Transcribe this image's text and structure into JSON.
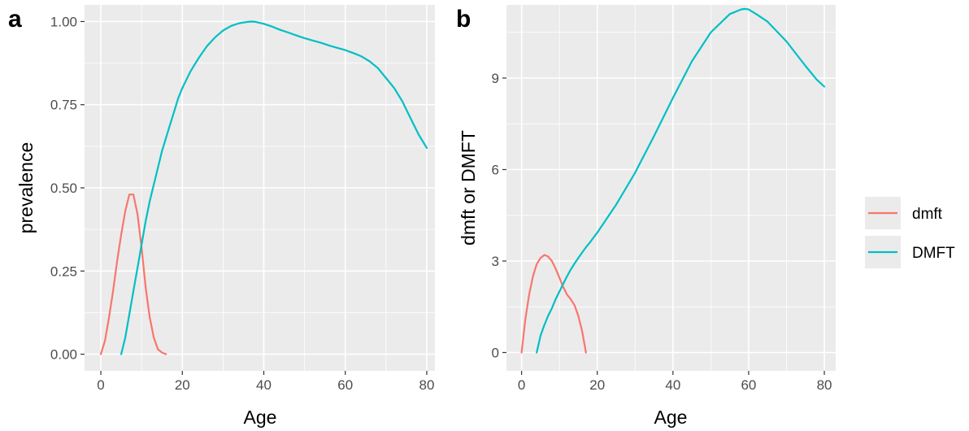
{
  "colors": {
    "dmft": "#F8766D",
    "DMFT": "#00BFC4",
    "panel": "#EBEBEB"
  },
  "legend": {
    "position": "right",
    "items": [
      {
        "key": "dmft",
        "label": "dmft"
      },
      {
        "key": "DMFT",
        "label": "DMFT"
      }
    ]
  },
  "chart_data": [
    {
      "type": "line",
      "panel": "a",
      "xlabel": "Age",
      "ylabel": "prevalence",
      "xlim": [
        -4,
        82
      ],
      "ylim": [
        -0.05,
        1.05
      ],
      "xticks": [
        0,
        20,
        40,
        60,
        80
      ],
      "xtick_labels": [
        "0",
        "20",
        "40",
        "60",
        "80"
      ],
      "yticks": [
        0,
        0.25,
        0.5,
        0.75,
        1.0
      ],
      "ytick_labels": [
        "0.00",
        "0.25",
        "0.50",
        "0.75",
        "1.00"
      ],
      "grid": true,
      "series": [
        {
          "name": "dmft",
          "x": [
            0,
            1,
            2,
            3,
            4,
            5,
            6,
            7,
            8,
            9,
            10,
            11,
            12,
            13,
            14,
            15,
            16
          ],
          "y": [
            0.0,
            0.04,
            0.11,
            0.19,
            0.28,
            0.36,
            0.43,
            0.48,
            0.48,
            0.42,
            0.32,
            0.2,
            0.11,
            0.05,
            0.015,
            0.005,
            0.0
          ]
        },
        {
          "name": "DMFT",
          "x": [
            5,
            6,
            7,
            8,
            9,
            10,
            11,
            12,
            13,
            14,
            15,
            16,
            17,
            18,
            19,
            20,
            22,
            24,
            26,
            28,
            30,
            32,
            34,
            36,
            37,
            38,
            40,
            42,
            44,
            46,
            48,
            50,
            52,
            54,
            56,
            58,
            60,
            62,
            64,
            66,
            68,
            70,
            72,
            74,
            76,
            78,
            80
          ],
          "y": [
            0.0,
            0.05,
            0.12,
            0.19,
            0.26,
            0.33,
            0.4,
            0.46,
            0.51,
            0.56,
            0.61,
            0.65,
            0.69,
            0.73,
            0.77,
            0.8,
            0.85,
            0.89,
            0.925,
            0.952,
            0.973,
            0.987,
            0.995,
            0.999,
            1.0,
            0.999,
            0.993,
            0.985,
            0.975,
            0.967,
            0.958,
            0.95,
            0.943,
            0.936,
            0.928,
            0.921,
            0.914,
            0.905,
            0.895,
            0.88,
            0.86,
            0.83,
            0.8,
            0.76,
            0.71,
            0.66,
            0.62
          ]
        }
      ]
    },
    {
      "type": "line",
      "panel": "b",
      "xlabel": "Age",
      "ylabel": "dmft or DMFT",
      "xlim": [
        -4,
        83
      ],
      "ylim": [
        -0.6,
        11.4
      ],
      "xticks": [
        0,
        20,
        40,
        60,
        80
      ],
      "xtick_labels": [
        "0",
        "20",
        "40",
        "60",
        "80"
      ],
      "yticks": [
        0,
        3,
        6,
        9
      ],
      "ytick_labels": [
        "0",
        "3",
        "6",
        "9"
      ],
      "grid": true,
      "series": [
        {
          "name": "dmft",
          "x": [
            0,
            1,
            2,
            3,
            4,
            5,
            6,
            7,
            8,
            9,
            10,
            11,
            12,
            13,
            14,
            15,
            16,
            17
          ],
          "y": [
            0.0,
            1.1,
            1.9,
            2.5,
            2.9,
            3.1,
            3.2,
            3.15,
            3.0,
            2.75,
            2.45,
            2.15,
            1.9,
            1.75,
            1.55,
            1.2,
            0.7,
            0.0
          ]
        },
        {
          "name": "DMFT",
          "x": [
            4,
            5,
            6,
            7,
            8,
            9,
            10,
            11,
            12,
            13,
            14,
            15,
            16,
            17,
            18,
            19,
            20,
            25,
            30,
            35,
            40,
            45,
            50,
            55,
            58,
            59,
            60,
            62,
            65,
            70,
            75,
            78,
            80
          ],
          "y": [
            0.0,
            0.55,
            0.9,
            1.2,
            1.45,
            1.75,
            2.0,
            2.25,
            2.5,
            2.72,
            2.92,
            3.1,
            3.28,
            3.45,
            3.6,
            3.77,
            3.93,
            4.85,
            5.9,
            7.1,
            8.35,
            9.55,
            10.5,
            11.1,
            11.25,
            11.27,
            11.25,
            11.1,
            10.85,
            10.2,
            9.4,
            8.95,
            8.72
          ]
        }
      ]
    }
  ]
}
